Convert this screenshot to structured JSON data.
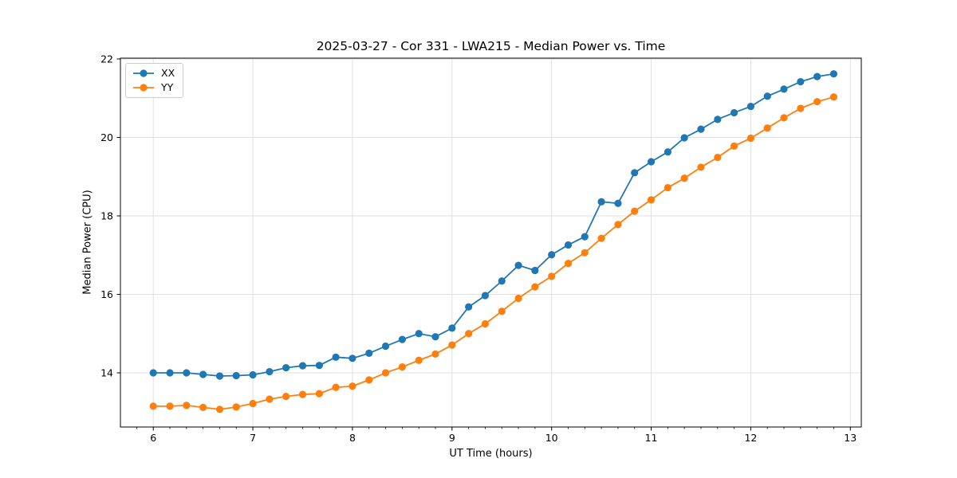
{
  "chart_data": {
    "type": "line",
    "title": "2025-03-27 - Cor 331 - LWA215 - Median Power vs. Time",
    "xlabel": "UT Time (hours)",
    "ylabel": "Median Power (CPU)",
    "xlim": [
      5.67,
      13.11
    ],
    "ylim": [
      12.62,
      22.02
    ],
    "xticks": [
      6,
      7,
      8,
      9,
      10,
      11,
      12,
      13
    ],
    "yticks": [
      14,
      16,
      18,
      20,
      22
    ],
    "minor_xtick_interval_hours": 0.1667,
    "grid": true,
    "legend_position": "upper-left",
    "sampling_interval_minutes": 10,
    "x": [
      6.0,
      6.167,
      6.333,
      6.5,
      6.667,
      6.833,
      7.0,
      7.167,
      7.333,
      7.5,
      7.667,
      7.833,
      8.0,
      8.167,
      8.333,
      8.5,
      8.667,
      8.833,
      9.0,
      9.167,
      9.333,
      9.5,
      9.667,
      9.833,
      10.0,
      10.167,
      10.333,
      10.5,
      10.667,
      10.833,
      11.0,
      11.167,
      11.333,
      11.5,
      11.667,
      11.833,
      12.0,
      12.167,
      12.333,
      12.5,
      12.667,
      12.833
    ],
    "series": [
      {
        "name": "XX",
        "color": "#1f77b4",
        "values": [
          14.0,
          14.0,
          14.0,
          13.96,
          13.92,
          13.93,
          13.95,
          14.03,
          14.13,
          14.18,
          14.19,
          14.4,
          14.37,
          14.5,
          14.68,
          14.85,
          15.0,
          14.92,
          15.14,
          15.68,
          15.97,
          16.34,
          16.74,
          16.61,
          17.01,
          17.26,
          17.47,
          18.36,
          18.32,
          19.1,
          19.38,
          19.63,
          19.99,
          20.21,
          20.46,
          20.63,
          20.79,
          21.05,
          21.23,
          21.42,
          21.55,
          21.62
        ]
      },
      {
        "name": "YY",
        "color": "#ff7f0e",
        "values": [
          13.15,
          13.15,
          13.17,
          13.12,
          13.07,
          13.13,
          13.22,
          13.33,
          13.4,
          13.45,
          13.47,
          13.63,
          13.66,
          13.82,
          14.0,
          14.15,
          14.32,
          14.48,
          14.71,
          15.0,
          15.25,
          15.57,
          15.9,
          16.19,
          16.46,
          16.79,
          17.06,
          17.43,
          17.78,
          18.12,
          18.41,
          18.72,
          18.96,
          19.24,
          19.49,
          19.78,
          19.98,
          20.24,
          20.5,
          20.74,
          20.91,
          21.03
        ]
      }
    ]
  }
}
